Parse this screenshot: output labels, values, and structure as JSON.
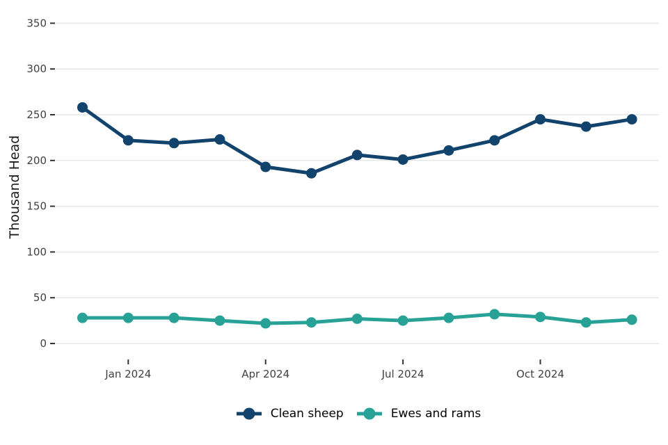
{
  "chart_data": {
    "type": "line",
    "title": "",
    "xlabel": "",
    "ylabel": "Thousand Head",
    "x": [
      "Dec 2023",
      "Jan 2024",
      "Feb 2024",
      "Mar 2024",
      "Apr 2024",
      "May 2024",
      "Jun 2024",
      "Jul 2024",
      "Aug 2024",
      "Sep 2024",
      "Oct 2024",
      "Nov 2024",
      "Dec 2024"
    ],
    "series": [
      {
        "name": "Clean sheep",
        "color": "#12436D",
        "values": [
          258,
          222,
          219,
          223,
          193,
          186,
          206,
          201,
          211,
          222,
          245,
          237,
          245
        ]
      },
      {
        "name": "Ewes and rams",
        "color": "#28A197",
        "values": [
          28,
          28,
          28,
          25,
          22,
          23,
          27,
          25,
          28,
          32,
          29,
          23,
          26
        ]
      }
    ],
    "ylim": [
      0,
      350
    ],
    "yticks": [
      0,
      50,
      100,
      150,
      200,
      250,
      300,
      350
    ],
    "xticks": [
      {
        "index": 1,
        "label": "Jan 2024"
      },
      {
        "index": 4,
        "label": "Apr 2024"
      },
      {
        "index": 7,
        "label": "Jul 2024"
      },
      {
        "index": 10,
        "label": "Oct 2024"
      }
    ],
    "grid": "horizontal-major",
    "legend_position": "bottom-center",
    "colors": {
      "grid": "#E7E7E7",
      "tick_mark": "#333333",
      "tick_text": "#404040",
      "axis_title_text": "#1A1A1A",
      "background": "#FFFFFF"
    }
  }
}
